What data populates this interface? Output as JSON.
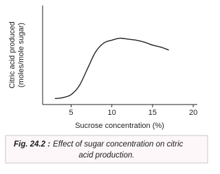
{
  "chart_data": {
    "type": "line",
    "y_label": [
      "Citric acid produced",
      "(moles/mole sugar)"
    ],
    "x_label": "Sucrose concentration (%)",
    "x": [
      3,
      4,
      5,
      6,
      7,
      8,
      9,
      10,
      11,
      12,
      13,
      14,
      15,
      16,
      17
    ],
    "series": [
      {
        "color": "#222222",
        "values": [
          0.06,
          0.07,
          0.1,
          0.19,
          0.36,
          0.53,
          0.62,
          0.65,
          0.67,
          0.66,
          0.65,
          0.63,
          0.6,
          0.58,
          0.55
        ]
      }
    ],
    "xlim": [
      1.5,
      20.5
    ],
    "xticks": [
      5,
      10,
      15,
      20
    ],
    "ylim": [
      0,
      1
    ]
  },
  "caption": {
    "label": "Fig. 24.2 :",
    "lines": [
      "Effect of sugar concentration on citric",
      "acid production."
    ]
  }
}
